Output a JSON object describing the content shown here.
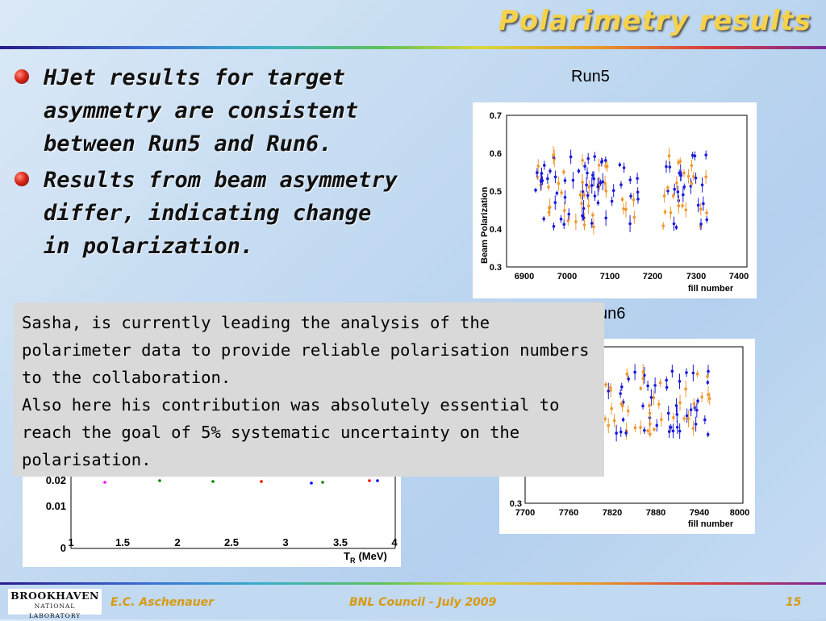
{
  "title": "Polarimetry results",
  "bullets": [
    "HJet results for target asymmetry are consistent between Run5 and Run6.",
    "Results from beam asymmetry differ, indicating change in polarization."
  ],
  "note": {
    "para1": "Sasha, is currently leading the analysis of the polarimeter data to provide reliable polarisation numbers to the collaboration.",
    "para2": "Also here his contribution was absolutely essential to reach the goal of 5% systematic uncertainty on the polarisation."
  },
  "plots": {
    "run5_label": "Run5",
    "run6_label": "un6",
    "run5": {
      "ylabel": "Beam Polarization",
      "xlabel": "fill number",
      "yticks": [
        "0.7",
        "0.6",
        "0.5",
        "0.4",
        "0.3"
      ],
      "xticks": [
        "6900",
        "7000",
        "7100",
        "7200",
        "7300",
        "7400"
      ]
    },
    "run6": {
      "xlabel": "fill number",
      "ytick_bottom": "0.3",
      "xticks": [
        "7700",
        "7760",
        "7820",
        "7880",
        "7940",
        "8000"
      ]
    },
    "target": {
      "xlabel": "T",
      "xlabel_sub": "R",
      "xlabel_unit": "(MeV)",
      "yticks": [
        "0.02",
        "0.01",
        "0"
      ],
      "xticks": [
        "1",
        "1.5",
        "2",
        "2.5",
        "3",
        "3.5",
        "4"
      ]
    }
  },
  "footer": {
    "logo_main": "BROOKHAVEN",
    "logo_sub": "NATIONAL LABORATORY",
    "author": "E.C. Aschenauer",
    "event": "BNL Council - July 2009",
    "page": "15"
  },
  "colors": {
    "title": "#f5d24a",
    "bullet": "#d8261a",
    "series_blue": "#1a1ad8",
    "series_orange": "#f0962a",
    "footer_text": "#d89a10"
  }
}
